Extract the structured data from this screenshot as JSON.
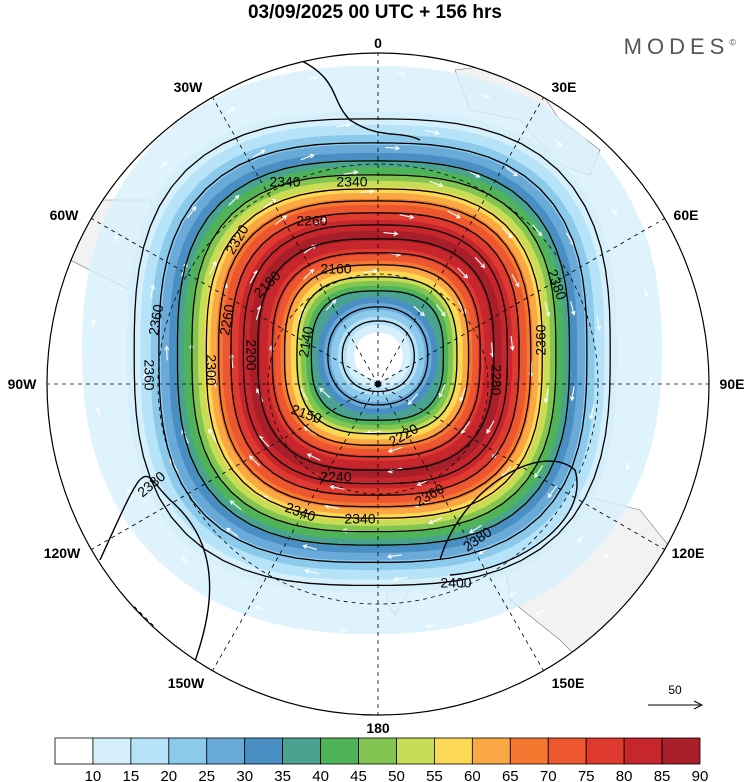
{
  "title": "03/09/2025  00 UTC  + 156 hrs",
  "logo": "MODES",
  "logo_mark": "©",
  "longitude_labels": {
    "n": "0",
    "ne30": "30E",
    "ne60": "60E",
    "e": "90E",
    "se120": "120E",
    "se150": "150E",
    "s": "180",
    "sw150": "150W",
    "sw120": "120W",
    "w": "90W",
    "nw60": "60W",
    "nw30": "30W"
  },
  "contour_labels": [
    "2340",
    "2340",
    "2320",
    "2260",
    "2180",
    "2160",
    "2140",
    "2150",
    "2200",
    "2260",
    "2300",
    "2360",
    "2360",
    "2380",
    "2360",
    "2280",
    "2220",
    "2240",
    "2340",
    "2340",
    "2380",
    "2400",
    "2380",
    "2380",
    "2360"
  ],
  "reference_vector": "50",
  "colorbar": {
    "colors": [
      "#ffffff",
      "#d6f0fb",
      "#b6e3f8",
      "#8ccaec",
      "#6aaad9",
      "#4a8fc4",
      "#4aa391",
      "#4fb35a",
      "#82c550",
      "#c8dc55",
      "#fbd955",
      "#f9a843",
      "#f6772f",
      "#ec5730",
      "#df3a30",
      "#c8262d",
      "#a81e29",
      "#8c1c22"
    ],
    "labels": [
      "10",
      "15",
      "20",
      "25",
      "30",
      "35",
      "40",
      "45",
      "50",
      "55",
      "60",
      "65",
      "70",
      "75",
      "80",
      "85",
      "90"
    ]
  }
}
